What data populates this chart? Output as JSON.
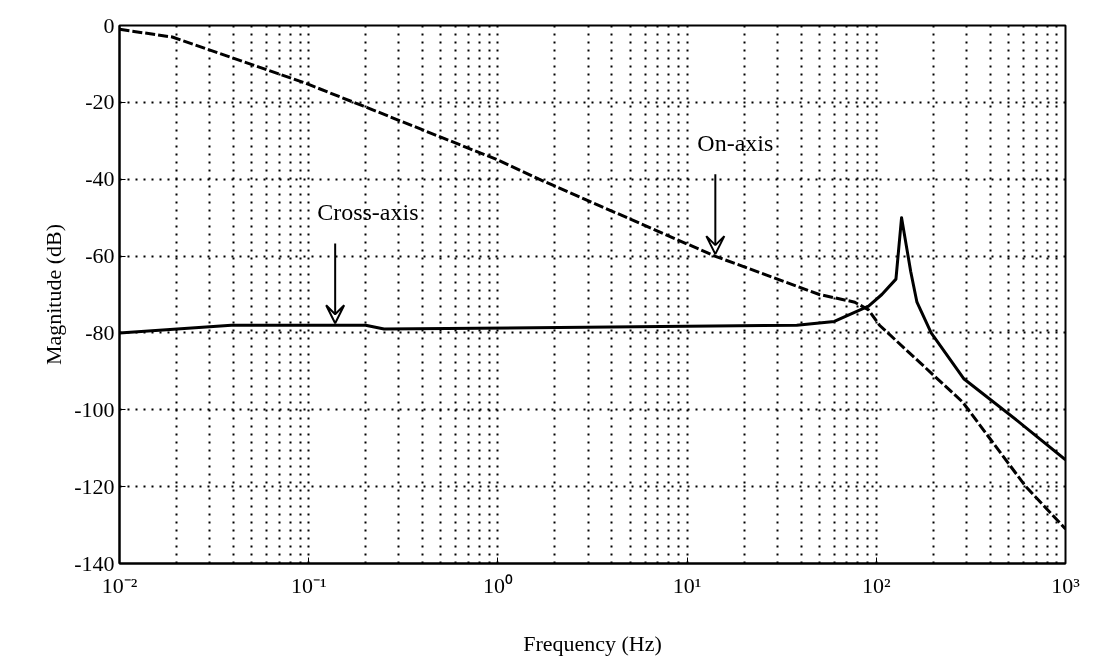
{
  "chart_data": {
    "type": "line",
    "xlabel": "Frequency (Hz)",
    "ylabel": "Magnitude (dB)",
    "x": [
      0.01,
      0.019,
      0.096,
      0.195,
      1.0,
      1.65,
      14,
      50,
      77,
      91,
      104,
      286,
      617,
      1000
    ],
    "series": [
      {
        "color": "#000000",
        "line_style": "dashed",
        "values": [
          -1,
          -3,
          -15,
          -21,
          -35,
          -40,
          -60,
          -70,
          -72,
          -74,
          -78,
          -98,
          -120,
          -131
        ]
      },
      {
        "color": "#000000",
        "line_style": "solid",
        "x": [
          0.01,
          0.039,
          0.2,
          0.25,
          38,
          60,
          91,
          107,
          127,
          136,
          152,
          164,
          195,
          291,
          562,
          1000
        ],
        "values": [
          -80,
          -78,
          -78,
          -79,
          -78,
          -77,
          -73,
          -70,
          -66,
          -50,
          -64,
          -72,
          -80,
          -92,
          -103,
          -113
        ]
      }
    ],
    "annotations": [
      {
        "text": "Cross-axis",
        "x": 0.138,
        "y": -77.5
      },
      {
        "text": "On-axis",
        "x": 14.1,
        "y": -59.5
      }
    ],
    "log": "x",
    "grid": true,
    "xlim": [
      0.01,
      1000
    ],
    "xticks": [
      {
        "value": 0.01,
        "label": "10⁻²"
      },
      {
        "value": 0.1,
        "label": "10⁻¹"
      },
      {
        "value": 1,
        "label": "10⁰"
      },
      {
        "value": 10,
        "label": "10¹"
      },
      {
        "value": 100,
        "label": "10²"
      },
      {
        "value": 1000,
        "label": "10³"
      }
    ],
    "ylim": [
      -140,
      0
    ],
    "yticks": [
      -140,
      -120,
      -100,
      -80,
      -60,
      -40,
      -20,
      0
    ]
  }
}
